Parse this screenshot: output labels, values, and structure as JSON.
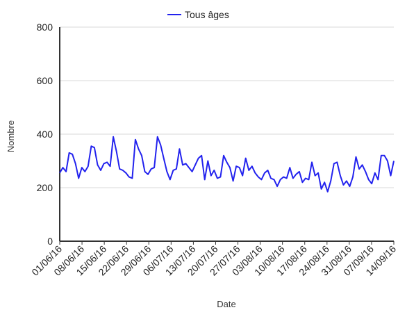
{
  "chart_data": {
    "type": "line",
    "xlabel": "Date",
    "ylabel": "Nombre",
    "ylim": [
      0,
      800
    ],
    "yticks": [
      0,
      200,
      400,
      600,
      800
    ],
    "grid": "horizontal",
    "legend_position": "top-center",
    "x_tick_labels": [
      "01/06/16",
      "08/06/16",
      "15/06/16",
      "22/06/16",
      "29/06/16",
      "06/07/16",
      "13/07/16",
      "20/07/16",
      "27/07/16",
      "03/08/16",
      "10/08/16",
      "17/08/16",
      "24/08/16",
      "31/08/16",
      "07/09/16",
      "14/09/16"
    ],
    "series": [
      {
        "name": "Tous âges",
        "color": "#2222ee",
        "start_date": "2016-06-01",
        "end_date": "2016-09-14",
        "values": [
          255,
          275,
          260,
          330,
          325,
          290,
          235,
          275,
          260,
          280,
          355,
          350,
          285,
          265,
          290,
          295,
          280,
          390,
          335,
          270,
          265,
          255,
          240,
          235,
          380,
          345,
          320,
          260,
          250,
          270,
          275,
          390,
          360,
          310,
          260,
          230,
          265,
          270,
          345,
          285,
          290,
          275,
          260,
          285,
          310,
          320,
          230,
          300,
          245,
          265,
          235,
          240,
          320,
          295,
          275,
          225,
          280,
          275,
          245,
          310,
          265,
          280,
          255,
          240,
          230,
          255,
          265,
          235,
          230,
          205,
          230,
          240,
          235,
          275,
          235,
          250,
          260,
          220,
          235,
          230,
          295,
          245,
          255,
          195,
          220,
          185,
          225,
          290,
          295,
          245,
          210,
          225,
          205,
          240,
          315,
          270,
          285,
          260,
          230,
          215,
          255,
          230,
          320,
          320,
          300,
          245,
          300
        ]
      }
    ]
  }
}
